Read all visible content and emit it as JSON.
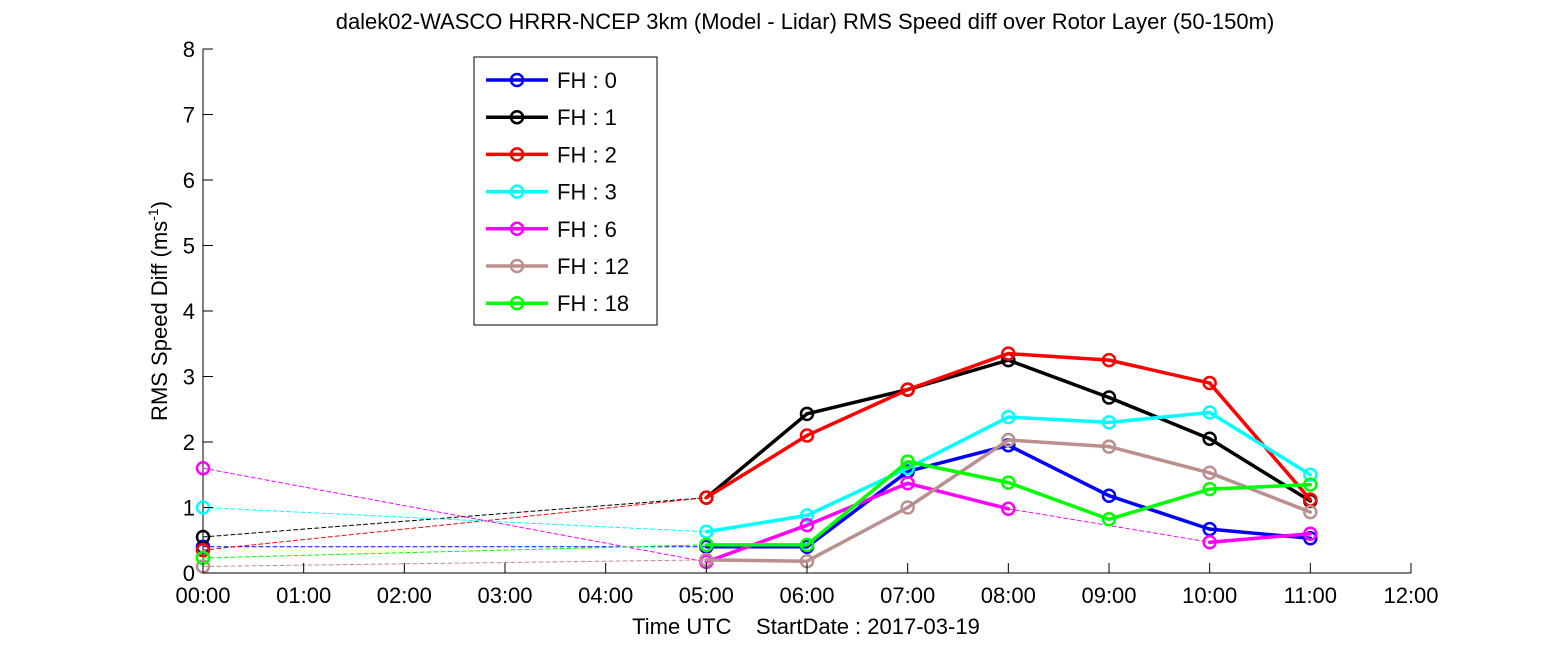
{
  "chart_data": {
    "type": "line",
    "title": "dalek02-WASCO HRRR-NCEP 3km (Model - Lidar) RMS Speed diff over Rotor Layer (50-150m)",
    "xlabel": "Time UTC    StartDate : 2017-03-19",
    "ylabel_main": "RMS Speed Diff (ms",
    "ylabel_sup": "-1",
    "ylabel_close": ")",
    "xlim": [
      0,
      12
    ],
    "ylim": [
      0,
      8
    ],
    "x_tick_labels": [
      "00:00",
      "01:00",
      "02:00",
      "03:00",
      "04:00",
      "05:00",
      "06:00",
      "07:00",
      "08:00",
      "09:00",
      "10:00",
      "11:00",
      "12:00"
    ],
    "y_tick_labels": [
      "0",
      "1",
      "2",
      "3",
      "4",
      "5",
      "6",
      "7",
      "8"
    ],
    "grid": false,
    "legend_position": "top-left",
    "x": [
      0,
      1,
      2,
      3,
      4,
      5,
      6,
      7,
      8,
      9,
      10,
      11
    ],
    "series": [
      {
        "name": "FH : 0",
        "color": "#0000ff",
        "values": [
          0.4,
          null,
          null,
          null,
          null,
          0.4,
          0.4,
          1.55,
          1.95,
          1.18,
          0.67,
          0.53
        ]
      },
      {
        "name": "FH : 1",
        "color": "#000000",
        "values": [
          0.55,
          null,
          null,
          null,
          null,
          1.15,
          2.43,
          2.8,
          3.25,
          2.68,
          2.05,
          1.1
        ]
      },
      {
        "name": "FH : 2",
        "color": "#ff0000",
        "values": [
          0.35,
          null,
          null,
          null,
          null,
          1.15,
          2.1,
          2.8,
          3.35,
          3.25,
          2.9,
          1.12
        ]
      },
      {
        "name": "FH : 3",
        "color": "#00ffff",
        "values": [
          1.0,
          null,
          null,
          null,
          null,
          0.63,
          0.88,
          1.6,
          2.38,
          2.3,
          2.45,
          1.5
        ]
      },
      {
        "name": "FH : 6",
        "color": "#ff00ff",
        "values": [
          1.6,
          null,
          null,
          null,
          null,
          0.17,
          0.73,
          1.37,
          0.98,
          null,
          0.47,
          0.6
        ]
      },
      {
        "name": "FH : 12",
        "color": "#bc8f8f",
        "values": [
          0.1,
          null,
          null,
          null,
          null,
          0.2,
          0.18,
          1.0,
          2.03,
          1.93,
          1.53,
          0.93
        ]
      },
      {
        "name": "FH : 18",
        "color": "#00ff00",
        "values": [
          0.23,
          null,
          null,
          null,
          null,
          0.43,
          0.43,
          1.7,
          1.38,
          0.82,
          1.28,
          1.35
        ]
      }
    ]
  }
}
